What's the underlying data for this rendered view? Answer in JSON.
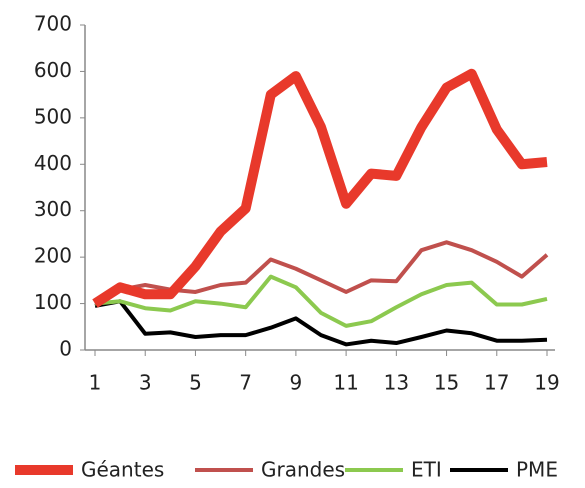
{
  "chart_data": {
    "type": "line",
    "x": [
      1,
      2,
      3,
      4,
      5,
      6,
      7,
      8,
      9,
      10,
      11,
      12,
      13,
      14,
      15,
      16,
      17,
      18,
      19
    ],
    "xlim": [
      1,
      19
    ],
    "xticks": [
      1,
      3,
      5,
      7,
      9,
      11,
      13,
      15,
      17,
      19
    ],
    "ylim": [
      0,
      700
    ],
    "yticks": [
      0,
      100,
      200,
      300,
      400,
      500,
      600,
      700
    ],
    "grid": false,
    "legend": "bottom",
    "series": [
      {
        "name": "Géantes",
        "color": "#e8392b",
        "values": [
          100,
          135,
          120,
          120,
          180,
          255,
          305,
          550,
          590,
          480,
          315,
          380,
          375,
          480,
          565,
          595,
          475,
          400,
          405
        ]
      },
      {
        "name": "Grandes",
        "color": "#c0504d",
        "values": [
          100,
          130,
          140,
          130,
          125,
          140,
          145,
          195,
          175,
          150,
          125,
          150,
          148,
          215,
          232,
          215,
          190,
          158,
          205
        ]
      },
      {
        "name": "ETI",
        "color": "#8cc94f",
        "values": [
          100,
          105,
          90,
          85,
          105,
          100,
          92,
          158,
          135,
          80,
          52,
          62,
          92,
          120,
          140,
          145,
          98,
          98,
          110
        ]
      },
      {
        "name": "PME",
        "color": "#000000",
        "values": [
          95,
          105,
          35,
          38,
          28,
          32,
          32,
          48,
          68,
          32,
          12,
          20,
          15,
          28,
          42,
          36,
          20,
          20,
          22
        ]
      }
    ]
  }
}
